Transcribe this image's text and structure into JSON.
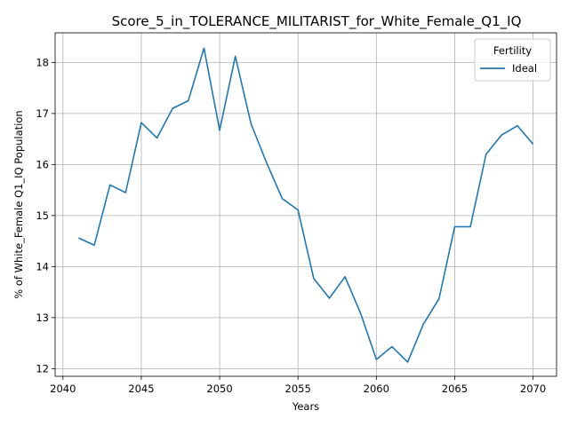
{
  "chart_data": {
    "type": "line",
    "title": "Score_5_in_TOLERANCE_MILITARIST_for_White_Female_Q1_IQ",
    "xlabel": "Years",
    "ylabel": "% of White_Female Q1_IQ Population",
    "xlim": [
      2039.5,
      2071.5
    ],
    "ylim": [
      11.85,
      18.58
    ],
    "xticks": [
      2040,
      2045,
      2050,
      2055,
      2060,
      2065,
      2070
    ],
    "yticks": [
      12,
      13,
      14,
      15,
      16,
      17,
      18
    ],
    "grid": true,
    "legend": {
      "title": "Fertility",
      "placement": "top-right"
    },
    "series": [
      {
        "name": "Ideal",
        "color": "#1f77b4",
        "x": [
          2041,
          2042,
          2043,
          2044,
          2045,
          2046,
          2047,
          2048,
          2049,
          2050,
          2051,
          2052,
          2053,
          2054,
          2055,
          2056,
          2057,
          2058,
          2059,
          2060,
          2061,
          2062,
          2063,
          2064,
          2065,
          2066,
          2067,
          2068,
          2069,
          2070
        ],
        "y": [
          14.56,
          14.42,
          15.6,
          15.45,
          16.82,
          16.52,
          17.1,
          17.25,
          18.28,
          16.67,
          18.12,
          16.8,
          16.03,
          15.33,
          15.11,
          13.77,
          13.38,
          13.8,
          13.08,
          12.18,
          12.43,
          12.13,
          12.87,
          13.37,
          14.78,
          14.78,
          16.2,
          16.58,
          16.76,
          16.4
        ]
      }
    ]
  }
}
